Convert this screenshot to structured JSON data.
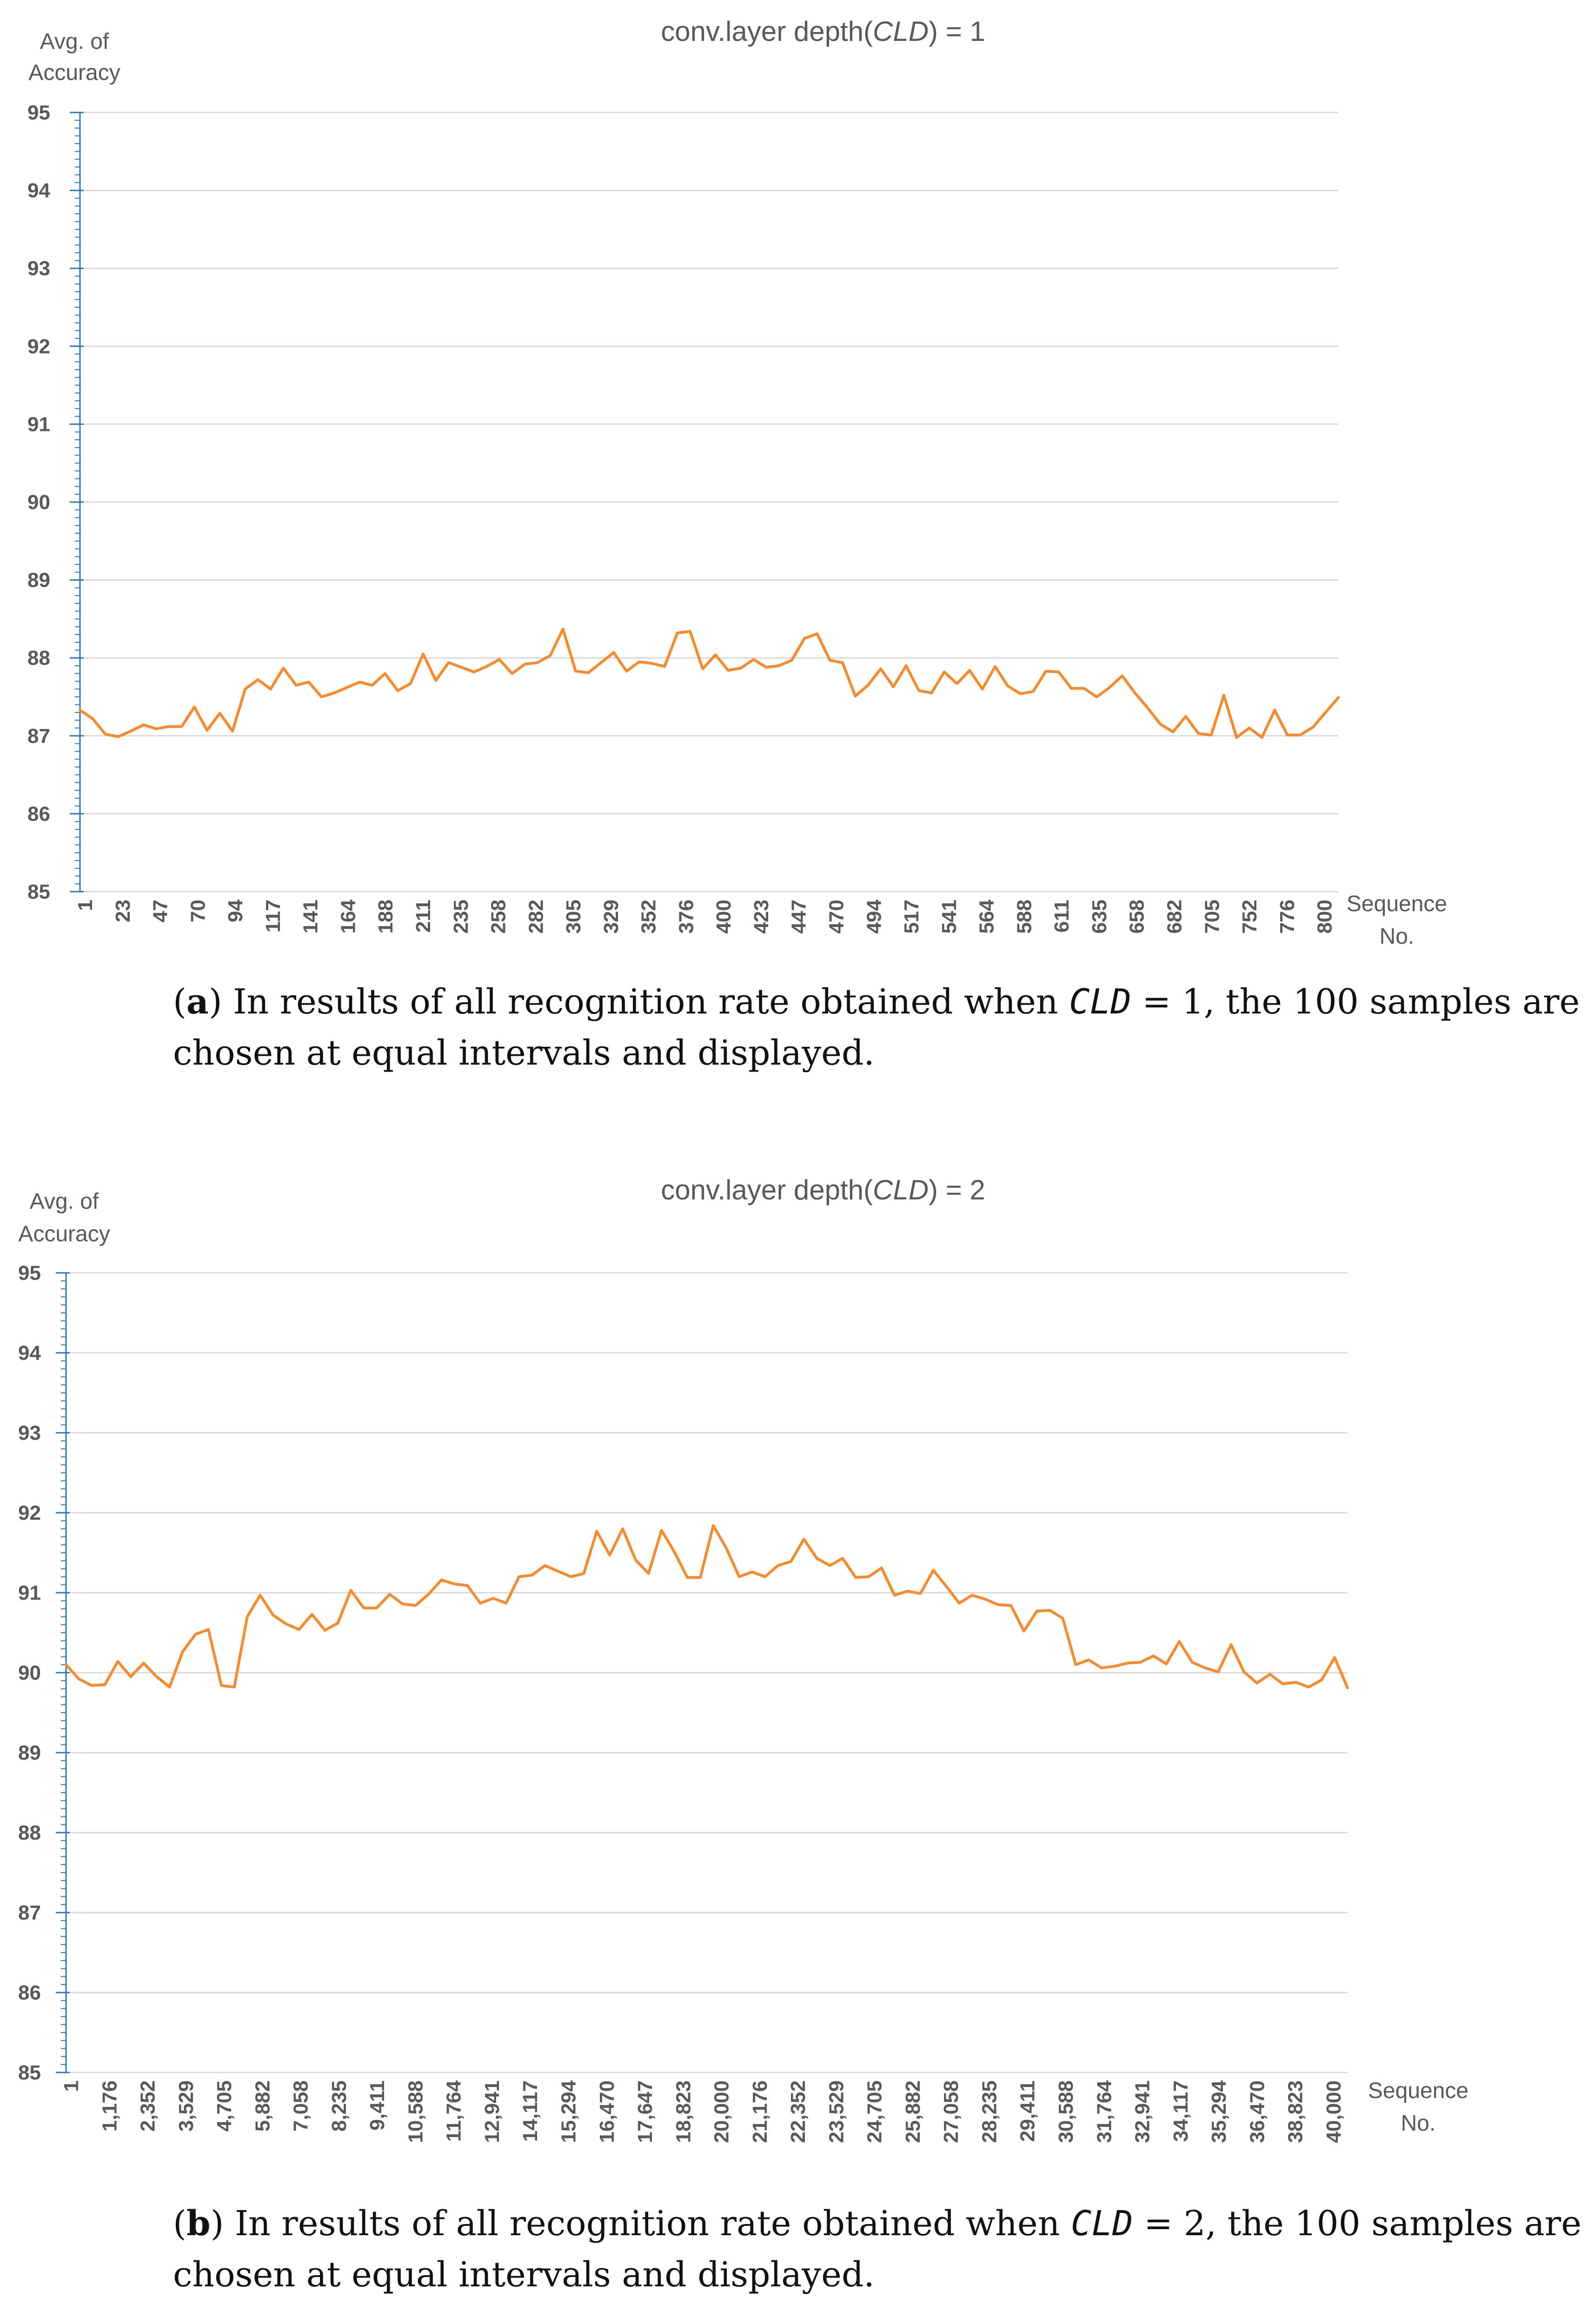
{
  "colors": {
    "line": "#F28C33",
    "axis": "#2E75B6",
    "grid": "#D9D9D9",
    "text": "#595959"
  },
  "chart_data": [
    {
      "type": "line",
      "title_prefix": "conv.layer depth(",
      "title_var": "CLD",
      "title_suffix": ") = 1",
      "ylabel_line1": "Avg. of",
      "ylabel_line2": "Accuracy",
      "xlabel_line1": "Sequence",
      "xlabel_line2": "No.",
      "ylim": [
        85,
        95
      ],
      "yticks": [
        "95",
        "94",
        "93",
        "92",
        "91",
        "90",
        "89",
        "88",
        "87",
        "86",
        "85"
      ],
      "xticks": [
        "1",
        "23",
        "47",
        "70",
        "94",
        "117",
        "141",
        "164",
        "188",
        "211",
        "235",
        "258",
        "282",
        "305",
        "329",
        "352",
        "376",
        "400",
        "423",
        "447",
        "470",
        "494",
        "517",
        "541",
        "564",
        "588",
        "611",
        "635",
        "658",
        "682",
        "705",
        "752",
        "776",
        "800"
      ],
      "series": [
        {
          "name": "accuracy",
          "values": [
            87.33,
            87.22,
            87.02,
            86.99,
            87.06,
            87.14,
            87.09,
            87.12,
            87.12,
            87.37,
            87.07,
            87.29,
            87.06,
            87.6,
            87.72,
            87.6,
            87.87,
            87.65,
            87.69,
            87.5,
            87.55,
            87.62,
            87.69,
            87.65,
            87.8,
            87.58,
            87.67,
            88.05,
            87.71,
            87.94,
            87.88,
            87.82,
            87.89,
            87.98,
            87.8,
            87.92,
            87.94,
            88.03,
            88.37,
            87.83,
            87.81,
            87.94,
            88.07,
            87.83,
            87.95,
            87.93,
            87.89,
            88.32,
            88.34,
            87.86,
            88.04,
            87.84,
            87.87,
            87.98,
            87.88,
            87.9,
            87.97,
            88.25,
            88.31,
            87.97,
            87.94,
            87.51,
            87.65,
            87.86,
            87.63,
            87.9,
            87.58,
            87.55,
            87.82,
            87.67,
            87.84,
            87.6,
            87.89,
            87.64,
            87.54,
            87.57,
            87.83,
            87.82,
            87.61,
            87.61,
            87.5,
            87.62,
            87.77,
            87.55,
            87.36,
            87.15,
            87.05,
            87.25,
            87.03,
            87.01,
            87.52,
            86.98,
            87.1,
            86.98,
            87.33,
            87.01,
            87.01,
            87.11,
            87.3,
            87.49
          ]
        }
      ],
      "caption_letter": "a",
      "caption_line1_pre": ") In results of all recognition rate obtained when ",
      "caption_var": "CLD",
      "caption_line1_post": " = 1, the 100 samples are",
      "caption_line2": "chosen at equal intervals and displayed."
    },
    {
      "type": "line",
      "title_prefix": "conv.layer depth(",
      "title_var": "CLD",
      "title_suffix": ") = 2",
      "ylabel_line1": "Avg. of",
      "ylabel_line2": "Accuracy",
      "xlabel_line1": "Sequence",
      "xlabel_line2": "No.",
      "ylim": [
        85,
        95
      ],
      "yticks": [
        "95",
        "94",
        "93",
        "92",
        "91",
        "90",
        "89",
        "88",
        "87",
        "86",
        "85"
      ],
      "xticks": [
        "1",
        "1,176",
        "2,352",
        "3,529",
        "4,705",
        "5,882",
        "7,058",
        "8,235",
        "9,411",
        "10,588",
        "11,764",
        "12,941",
        "14,117",
        "15,294",
        "16,470",
        "17,647",
        "18,823",
        "20,000",
        "21,176",
        "22,352",
        "23,529",
        "24,705",
        "25,882",
        "27,058",
        "28,235",
        "29,411",
        "30,588",
        "31,764",
        "32,941",
        "34,117",
        "35,294",
        "36,470",
        "38,823",
        "40,000"
      ],
      "series": [
        {
          "name": "accuracy",
          "values": [
            90.1,
            89.92,
            89.84,
            89.85,
            90.14,
            89.95,
            90.12,
            89.95,
            89.82,
            90.26,
            90.48,
            90.54,
            89.84,
            89.82,
            90.7,
            90.97,
            90.72,
            90.61,
            90.54,
            90.73,
            90.53,
            90.62,
            91.03,
            90.81,
            90.81,
            90.98,
            90.86,
            90.84,
            90.98,
            91.16,
            91.11,
            91.09,
            90.87,
            90.93,
            90.87,
            91.2,
            91.22,
            91.34,
            91.27,
            91.2,
            91.24,
            91.77,
            91.47,
            91.8,
            91.41,
            91.24,
            91.78,
            91.51,
            91.19,
            91.19,
            91.84,
            91.56,
            91.2,
            91.26,
            91.2,
            91.34,
            91.39,
            91.67,
            91.43,
            91.34,
            91.43,
            91.19,
            91.2,
            91.31,
            90.97,
            91.02,
            90.99,
            91.28,
            91.08,
            90.87,
            90.97,
            90.92,
            90.85,
            90.84,
            90.52,
            90.77,
            90.78,
            90.68,
            90.1,
            90.16,
            90.06,
            90.08,
            90.12,
            90.13,
            90.21,
            90.11,
            90.39,
            90.13,
            90.06,
            90.01,
            90.35,
            90.01,
            89.87,
            89.98,
            89.86,
            89.88,
            89.82,
            89.91,
            90.19,
            89.81
          ]
        }
      ],
      "caption_letter": "b",
      "caption_line1_pre": ") In results of all recognition rate obtained when ",
      "caption_var": "CLD",
      "caption_line1_post": " = 2, the 100 samples are",
      "caption_line2": "chosen at equal intervals and displayed."
    }
  ]
}
